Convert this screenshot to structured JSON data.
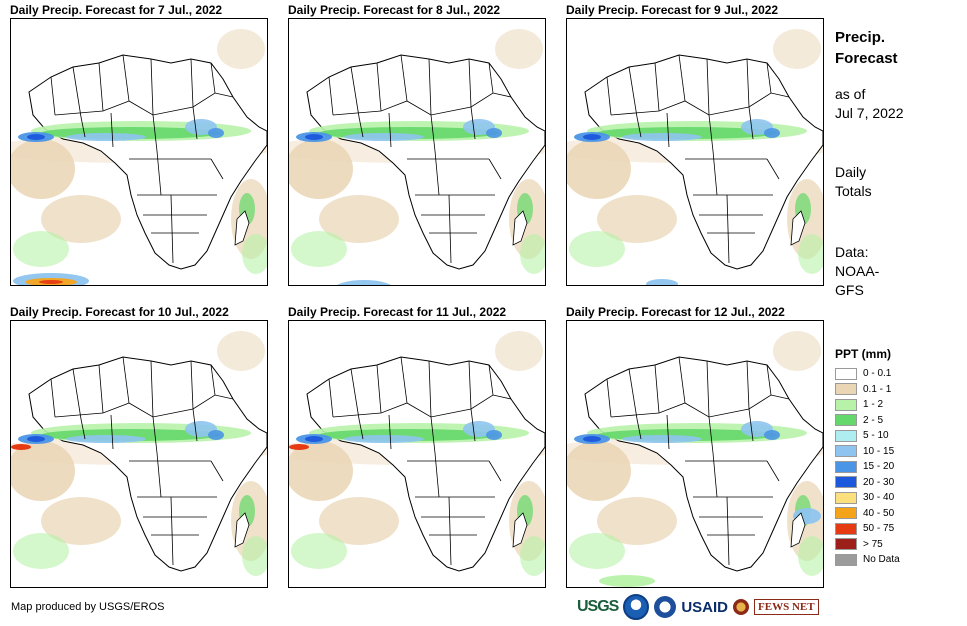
{
  "panels": [
    {
      "title": "Daily Precip. Forecast for 7 Jul., 2022"
    },
    {
      "title": "Daily Precip. Forecast for 8 Jul., 2022"
    },
    {
      "title": "Daily Precip. Forecast for 9 Jul., 2022"
    },
    {
      "title": "Daily Precip. Forecast for 10 Jul., 2022"
    },
    {
      "title": "Daily Precip. Forecast for 11 Jul., 2022"
    },
    {
      "title": "Daily Precip. Forecast for 12 Jul., 2022"
    }
  ],
  "sidebar": {
    "title_line1": "Precip.",
    "title_line2": "Forecast",
    "asof_line1": "as of",
    "asof_line2": "Jul 7, 2022",
    "daily_line1": "Daily",
    "daily_line2": "Totals",
    "data_line1": "Data:",
    "data_line2": "NOAA-",
    "data_line3": "GFS"
  },
  "legend": {
    "title": "PPT (mm)",
    "items": [
      {
        "label": "0 - 0.1",
        "color": "#ffffff"
      },
      {
        "label": "0.1 - 1",
        "color": "#ead5b4"
      },
      {
        "label": "1 - 2",
        "color": "#b7f2a8"
      },
      {
        "label": "2 - 5",
        "color": "#64d86a"
      },
      {
        "label": "5 - 10",
        "color": "#aeeef0"
      },
      {
        "label": "10 - 15",
        "color": "#8ec4ef"
      },
      {
        "label": "15 - 20",
        "color": "#4b95e6"
      },
      {
        "label": "20 - 30",
        "color": "#1c58dc"
      },
      {
        "label": "30 - 40",
        "color": "#fce07e"
      },
      {
        "label": "40 - 50",
        "color": "#f5a41a"
      },
      {
        "label": "50 - 75",
        "color": "#e53a12"
      },
      {
        "label": "> 75",
        "color": "#9d1f1a"
      },
      {
        "label": "No Data",
        "color": "#9b9b9b"
      }
    ]
  },
  "credit": "Map produced by USGS/EROS",
  "logos": {
    "usgs": "USGS",
    "usaid": "USAID",
    "fews": "FEWS NET"
  }
}
